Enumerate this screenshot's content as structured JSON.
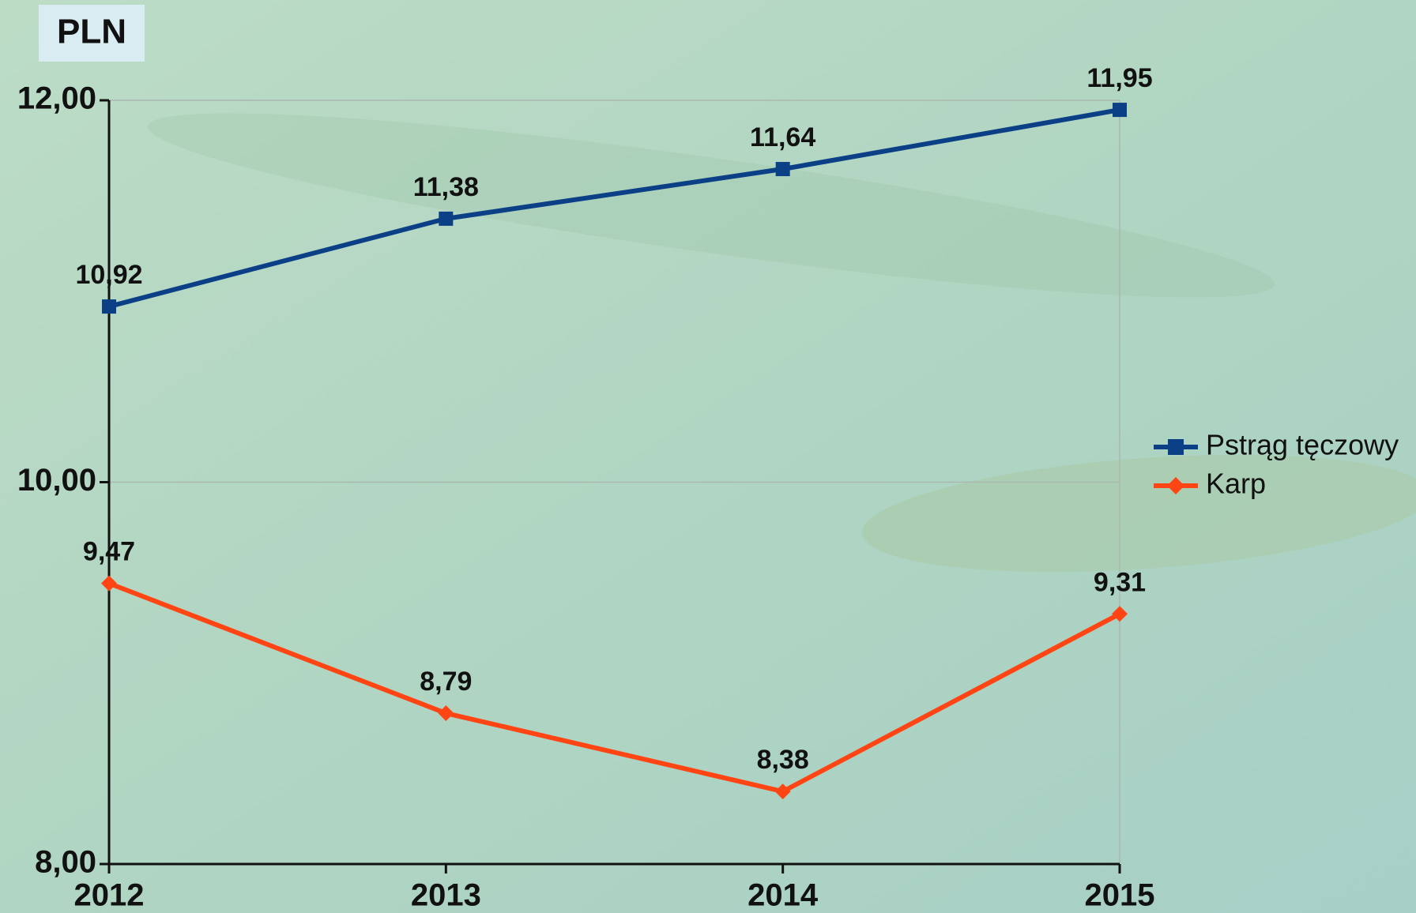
{
  "chart_data": {
    "type": "line",
    "title": "PLN",
    "categories": [
      "2012",
      "2013",
      "2014",
      "2015"
    ],
    "series": [
      {
        "name": "Pstrąg tęczowy",
        "color": "#0b3f86",
        "marker": "square",
        "values": [
          10.92,
          11.38,
          11.64,
          11.95
        ],
        "value_labels": [
          "10,92",
          "11,38",
          "11,64",
          "11,95"
        ]
      },
      {
        "name": "Karp",
        "color": "#ff4514",
        "marker": "diamond",
        "values": [
          9.47,
          8.79,
          8.38,
          9.31
        ],
        "value_labels": [
          "9,47",
          "8,79",
          "8,38",
          "9,31"
        ]
      }
    ],
    "ylim": [
      8,
      12
    ],
    "yticks": [
      {
        "value": 8,
        "label": "8,00"
      },
      {
        "value": 10,
        "label": "10,00"
      },
      {
        "value": 12,
        "label": "12,00"
      }
    ],
    "grid": true,
    "legend": "right"
  }
}
